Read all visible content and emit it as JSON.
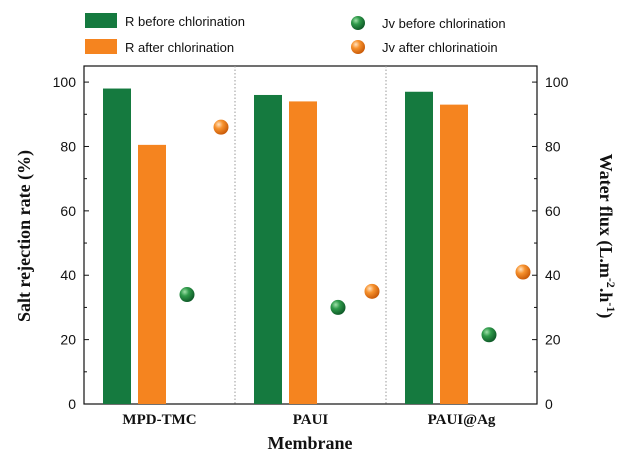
{
  "chart_data": {
    "type": "bar",
    "categories": [
      "MPD-TMC",
      "PAUI",
      "PAUI@Ag"
    ],
    "xlabel": "Membrane",
    "ylabel_left": "Salt rejection rate (%)",
    "ylabel_right": "Water flux (L.m-2.h-1)",
    "ylim_left": [
      0,
      105
    ],
    "ylim_right": [
      0,
      105
    ],
    "yticks_left": [
      "0",
      "20",
      "40",
      "60",
      "80",
      "100"
    ],
    "yticks_right": [
      "0",
      "20",
      "40",
      "60",
      "80",
      "100"
    ],
    "bar_series": [
      {
        "name": "R before chlorination",
        "color": "#157a3f",
        "values": [
          98,
          96,
          97
        ]
      },
      {
        "name": "R after chlorination",
        "color": "#f5841f",
        "values": [
          80.5,
          94,
          93
        ]
      }
    ],
    "scatter_series": [
      {
        "name": "Jv before chlorination",
        "color": "#1f8a3c",
        "values": [
          34,
          30,
          21.5
        ]
      },
      {
        "name": "Jv after chlorinatioin",
        "color": "#f08223",
        "values": [
          86,
          35,
          41
        ]
      }
    ],
    "legend_position": "top"
  }
}
